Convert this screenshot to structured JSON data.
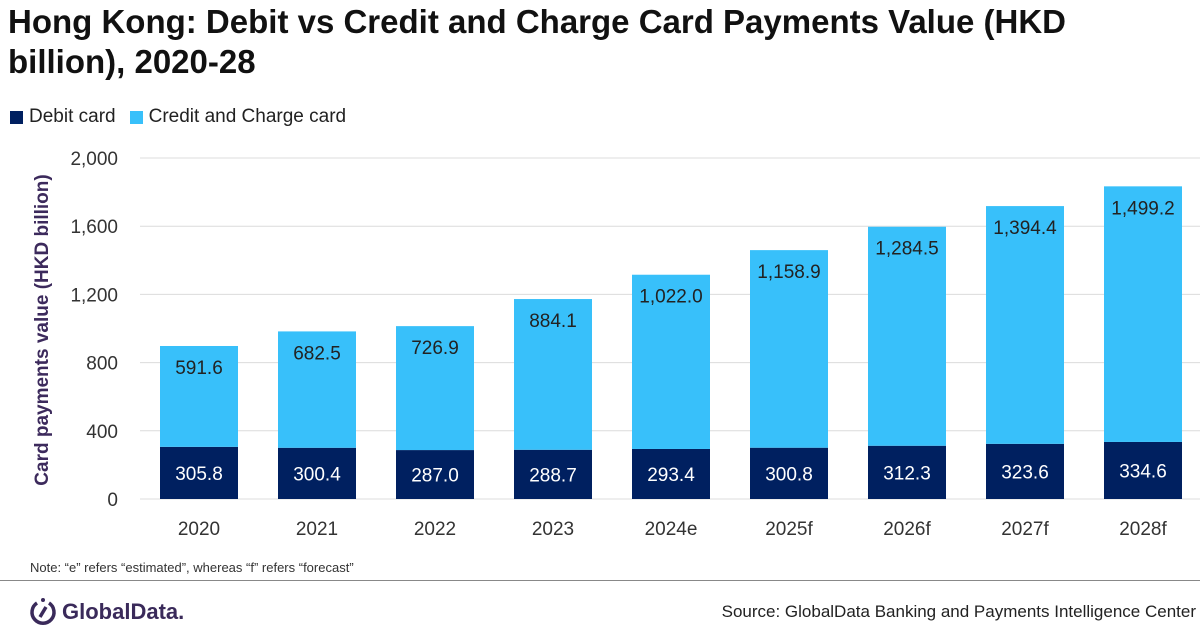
{
  "chart_data": {
    "type": "bar",
    "stacked": true,
    "title": "Hong Kong: Debit vs Credit and Charge Card Payments Value (HKD billion), 2020-28",
    "xlabel": "",
    "ylabel": "Card payments value (HKD billion)",
    "ylim": [
      0,
      2000
    ],
    "yticks": [
      0,
      400,
      800,
      1200,
      1600,
      2000
    ],
    "ytick_labels": [
      "0",
      "400",
      "800",
      "1,200",
      "1,600",
      "2,000"
    ],
    "grid": true,
    "legend_position": "top-left",
    "categories": [
      "2020",
      "2021",
      "2022",
      "2023",
      "2024e",
      "2025f",
      "2026f",
      "2027f",
      "2028f"
    ],
    "series": [
      {
        "name": "Debit card",
        "color": "#002060",
        "values": [
          305.8,
          300.4,
          287.0,
          288.7,
          293.4,
          300.8,
          312.3,
          323.6,
          334.6
        ],
        "labels": [
          "305.8",
          "300.4",
          "287.0",
          "288.7",
          "293.4",
          "300.8",
          "312.3",
          "323.6",
          "334.6"
        ]
      },
      {
        "name": "Credit and Charge card",
        "color": "#38C0FA",
        "values": [
          591.6,
          682.5,
          726.9,
          884.1,
          1022.0,
          1158.9,
          1284.5,
          1394.4,
          1499.2
        ],
        "labels": [
          "591.6",
          "682.5",
          "726.9",
          "884.1",
          "1,022.0",
          "1,158.9",
          "1,284.5",
          "1,394.4",
          "1,499.2"
        ]
      }
    ]
  },
  "note": "Note: “e” refers “estimated”, whereas “f” refers “forecast”",
  "logo_text": "GlobalData.",
  "source": "Source: GlobalData Banking and Payments Intelligence Center"
}
